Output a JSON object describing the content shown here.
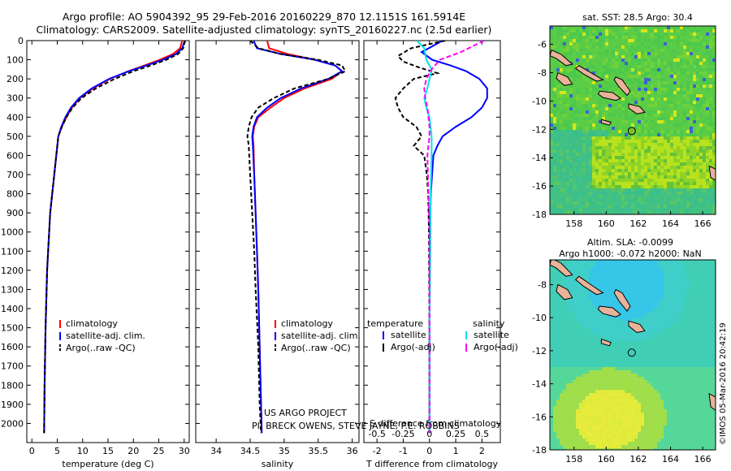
{
  "header": {
    "line1": "Argo profile: AO 5904392_95 29-Feb-2016 20160229_870 12.1151S 161.5914E",
    "line2": "Climatology: CARS2009. Satellite-adjusted climatology: synTS_20160227.nc (2.5d earlier)"
  },
  "credits": {
    "project": "US ARGO PROJECT",
    "pi": "PI: BRECK OWENS, STEVE JAYNE, P.E. ROBBINS",
    "timestamp": "©IMOS 05-Mar-2016 20:42:19"
  },
  "colors": {
    "climatology": "#ff0000",
    "satellite": "#0000ff",
    "argo": "#000000",
    "salinity_satellite": "#00e5e5",
    "salinity_argo": "#ff00ff",
    "land": "#e8b39a"
  },
  "chart_data": [
    {
      "type": "line",
      "xlabel": "temperature (deg C)",
      "ylabel": "",
      "xlim": [
        -1,
        31
      ],
      "ylim": [
        2100,
        0
      ],
      "xticks": [
        0,
        5,
        10,
        15,
        20,
        25,
        30
      ],
      "yticks": [
        0,
        100,
        200,
        300,
        400,
        500,
        600,
        700,
        800,
        900,
        1000,
        1100,
        1200,
        1300,
        1400,
        1500,
        1600,
        1700,
        1800,
        1900,
        2000
      ],
      "legend": [
        "climatology",
        "satellite-adj. clim.",
        "Argo(..raw -QC)"
      ],
      "series": [
        {
          "name": "climatology",
          "color": "#ff0000",
          "x": [
            29.6,
            29.2,
            27.8,
            25.2,
            22.2,
            19.0,
            15.4,
            12.0,
            9.5,
            7.9,
            6.8,
            5.9,
            5.2,
            4.8,
            4.4,
            3.6,
            3.0,
            2.7,
            2.5,
            2.4
          ],
          "y": [
            0,
            40,
            70,
            100,
            130,
            160,
            200,
            250,
            300,
            350,
            400,
            450,
            500,
            600,
            700,
            900,
            1200,
            1500,
            1800,
            2050
          ]
        },
        {
          "name": "satellite-adj. clim.",
          "color": "#0000ff",
          "x": [
            30.1,
            29.6,
            28.4,
            25.8,
            22.6,
            19.1,
            15.2,
            11.8,
            9.3,
            7.7,
            6.6,
            5.8,
            5.2,
            4.8,
            4.4,
            3.6,
            3.0,
            2.7,
            2.5,
            2.4
          ],
          "y": [
            0,
            40,
            70,
            100,
            130,
            160,
            200,
            250,
            300,
            350,
            400,
            450,
            500,
            600,
            700,
            900,
            1200,
            1500,
            1800,
            2050
          ]
        },
        {
          "name": "Argo(..raw -QC)",
          "color": "#000000",
          "x": [
            30.2,
            29.8,
            28.8,
            26.5,
            23.4,
            20.0,
            16.3,
            12.6,
            9.8,
            8.0,
            6.8,
            5.9,
            5.2,
            4.8,
            4.4,
            3.6,
            3.0,
            2.7,
            2.5,
            2.4
          ],
          "y": [
            0,
            40,
            70,
            100,
            130,
            160,
            200,
            250,
            300,
            350,
            400,
            450,
            500,
            600,
            700,
            900,
            1200,
            1500,
            1800,
            2050
          ]
        }
      ]
    },
    {
      "type": "line",
      "xlabel": "salinity",
      "ylabel": "",
      "xlim": [
        33.7,
        36.1
      ],
      "ylim": [
        2100,
        0
      ],
      "xticks": [
        34,
        34.5,
        35,
        35.5,
        36
      ],
      "legend": [
        "climatology",
        "satellite-adj. clim.",
        "Argo(..raw -QC)"
      ],
      "series": [
        {
          "name": "climatology",
          "color": "#ff0000",
          "x": [
            34.75,
            34.78,
            35.05,
            35.45,
            35.75,
            35.85,
            35.7,
            35.3,
            35.0,
            34.8,
            34.62,
            34.56,
            34.54,
            34.55,
            34.56,
            34.58,
            34.6,
            34.62,
            34.64,
            34.66,
            34.67
          ],
          "y": [
            0,
            40,
            70,
            100,
            130,
            160,
            200,
            250,
            300,
            350,
            400,
            450,
            500,
            550,
            700,
            900,
            1100,
            1300,
            1600,
            1900,
            2050
          ]
        },
        {
          "name": "satellite-adj. clim.",
          "color": "#0000ff",
          "x": [
            34.55,
            34.6,
            34.95,
            35.45,
            35.75,
            35.85,
            35.65,
            35.25,
            34.95,
            34.75,
            34.6,
            34.55,
            34.53,
            34.54,
            34.56,
            34.58,
            34.6,
            34.62,
            34.64,
            34.66,
            34.67
          ],
          "y": [
            0,
            40,
            70,
            100,
            130,
            160,
            200,
            250,
            300,
            350,
            400,
            450,
            500,
            550,
            700,
            900,
            1100,
            1300,
            1600,
            1900,
            2050
          ]
        },
        {
          "name": "Argo(..raw -QC)",
          "color": "#000000",
          "x": [
            34.5,
            34.62,
            34.95,
            35.5,
            35.85,
            35.9,
            35.65,
            35.15,
            34.85,
            34.62,
            34.52,
            34.48,
            34.46,
            34.48,
            34.5,
            34.53,
            34.56,
            34.58,
            34.62,
            34.64,
            34.66
          ],
          "y": [
            0,
            40,
            70,
            100,
            130,
            160,
            200,
            250,
            300,
            350,
            400,
            450,
            500,
            550,
            700,
            900,
            1100,
            1300,
            1600,
            1900,
            2050
          ]
        }
      ]
    },
    {
      "type": "line",
      "xlabel": "T difference from climatology",
      "top_label": "S difference from climatology",
      "ylabel": "",
      "xlim": [
        -2.5,
        2.7
      ],
      "ylim": [
        2100,
        0
      ],
      "xticks": [
        -2,
        -1,
        0,
        1,
        2
      ],
      "s_xlim": [
        -0.625,
        0.675
      ],
      "s_xticks": [
        -0.5,
        -0.25,
        0,
        0.25,
        0.5
      ],
      "s_xtick_labels": [
        "-0.5",
        "-0.25",
        "0",
        "0.25",
        "0.5"
      ],
      "legend": {
        "temperature_header": "temperature",
        "salinity_header": "salinity",
        "items": [
          "satellite",
          "Argo(-adj)",
          "satellite",
          "Argo(-adj)"
        ]
      },
      "series": [
        {
          "name": "satellite",
          "quantity": "temperature",
          "color": "#0000ff",
          "x": [
            0.5,
            0.1,
            -0.3,
            0.1,
            0.8,
            1.4,
            1.9,
            2.2,
            2.2,
            2.0,
            1.6,
            1.0,
            0.5,
            0.3,
            0.15,
            0.1,
            0.05,
            0.02,
            0.0,
            0.0
          ],
          "y": [
            0,
            30,
            60,
            100,
            130,
            160,
            200,
            250,
            300,
            350,
            400,
            450,
            500,
            550,
            600,
            700,
            800,
            1000,
            1500,
            2050
          ]
        },
        {
          "name": "Argo(-adj)",
          "quantity": "temperature",
          "color": "#000000",
          "x": [
            0.6,
            -0.7,
            -1.2,
            -1.0,
            -0.4,
            0.3,
            -0.6,
            -1.0,
            -1.3,
            -1.2,
            -1.0,
            -0.5,
            -0.3,
            -0.6,
            -0.2,
            -0.1,
            -0.05,
            -0.02,
            0.0,
            0.0
          ],
          "y": [
            0,
            40,
            80,
            110,
            140,
            170,
            200,
            250,
            300,
            350,
            400,
            450,
            500,
            550,
            600,
            700,
            800,
            1000,
            1500,
            2050
          ]
        },
        {
          "name": "satellite",
          "quantity": "salinity",
          "color": "#00e5e5",
          "x": [
            -0.12,
            -0.05,
            -0.03,
            0.02,
            0.0,
            -0.02,
            -0.05,
            -0.03,
            0.0,
            0.01,
            0.02,
            0.02,
            0.01,
            0.01,
            0.0,
            0.0
          ],
          "y": [
            0,
            40,
            100,
            150,
            200,
            250,
            300,
            350,
            400,
            450,
            500,
            600,
            800,
            1000,
            1500,
            2050
          ]
        },
        {
          "name": "Argo(-adj)",
          "quantity": "salinity",
          "color": "#ff00ff",
          "x": [
            0.52,
            0.3,
            0.1,
            0.02,
            -0.03,
            -0.05,
            -0.04,
            -0.02,
            -0.01,
            0.0,
            0.0,
            -0.02,
            -0.01,
            0.0,
            0.0
          ],
          "y": [
            0,
            60,
            100,
            150,
            200,
            250,
            300,
            350,
            400,
            450,
            500,
            600,
            800,
            1000,
            2050
          ]
        }
      ]
    },
    {
      "type": "heatmap",
      "title": "sat. SST: 28.5  Argo: 30.4",
      "xlim": [
        156.5,
        166.8
      ],
      "ylim": [
        -18,
        -4.7
      ],
      "xticks": [
        158,
        160,
        162,
        164,
        166
      ],
      "yticks": [
        -6,
        -8,
        -10,
        -12,
        -14,
        -16,
        -18
      ],
      "argo_position": {
        "lon": 161.5914,
        "lat": -12.1151
      }
    },
    {
      "type": "heatmap",
      "title": "Altim. SLA: -0.0099",
      "subtitle": "Argo h1000: -0.072 h2000: NaN",
      "xlim": [
        156.5,
        166.8
      ],
      "ylim": [
        -18,
        -6.5
      ],
      "xticks": [
        158,
        160,
        162,
        164,
        166
      ],
      "yticks": [
        -8,
        -10,
        -12,
        -14,
        -16,
        -18
      ],
      "argo_position": {
        "lon": 161.5914,
        "lat": -12.1151
      }
    }
  ]
}
